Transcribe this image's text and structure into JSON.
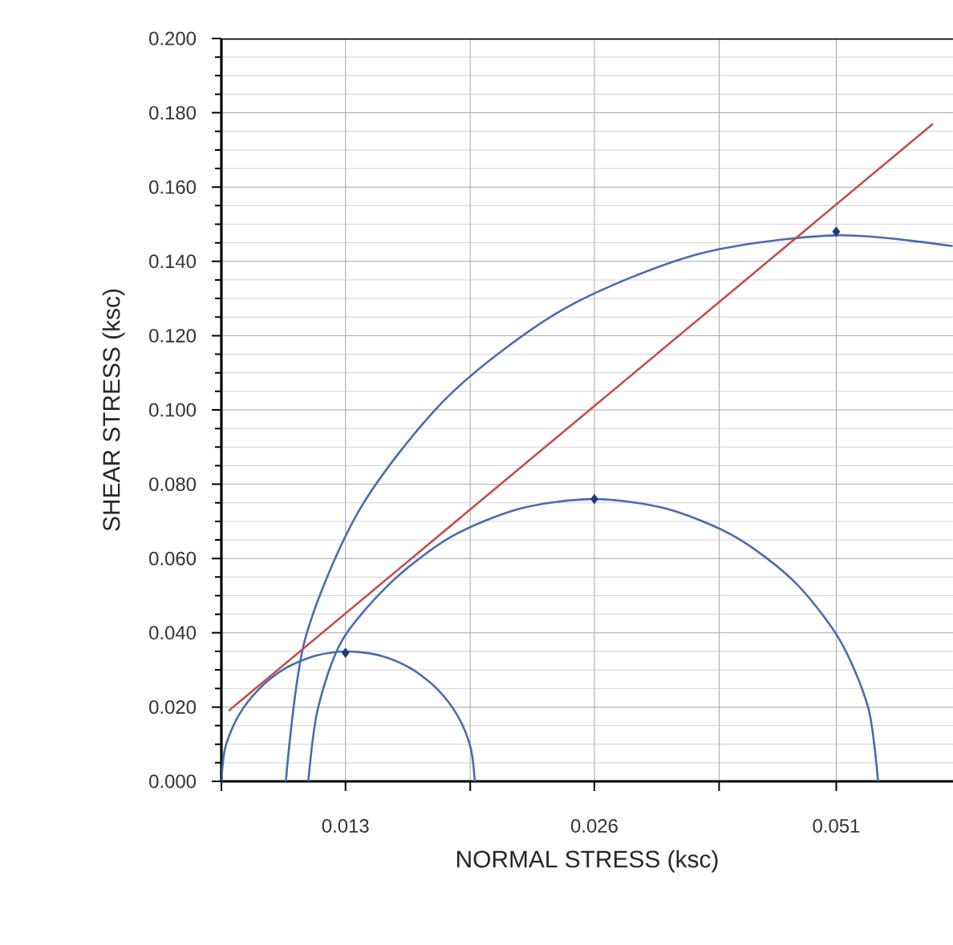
{
  "chart_data": {
    "type": "line",
    "xlabel": "NORMAL STRESS (ksc)",
    "ylabel": "SHEAR STRESS (ksc)",
    "log": "x",
    "xlim": [
      0.0092,
      0.0706
    ],
    "ylim": [
      0,
      0.2
    ],
    "xticks": [
      {
        "value": 0.0092,
        "label": null
      },
      0.013,
      {
        "value": 0.0184,
        "label": null
      },
      0.026,
      {
        "value": 0.0368,
        "label": null
      },
      0.051
    ],
    "yticks": [
      {
        "value": 0,
        "label": "0.000"
      },
      {
        "value": 0.02,
        "label": "0.020"
      },
      {
        "value": 0.04,
        "label": "0.040"
      },
      {
        "value": 0.06,
        "label": "0.060"
      },
      {
        "value": 0.08,
        "label": "0.080"
      },
      {
        "value": 0.1,
        "label": "0.100"
      },
      {
        "value": 0.12,
        "label": "0.120"
      },
      {
        "value": 0.14,
        "label": "0.140"
      },
      {
        "value": 0.16,
        "label": "0.160"
      },
      {
        "value": 0.18,
        "label": "0.180"
      },
      {
        "value": 0.2,
        "label": "0.200"
      }
    ],
    "grid": true,
    "series": [
      {
        "type": "line",
        "color": "#4a6bb0",
        "x": [
          0.0092,
          0.0093,
          0.00964,
          0.0102,
          0.01097,
          0.01195,
          0.01309,
          0.01435,
          0.01562,
          0.01681,
          0.01778,
          0.01842,
          0.01864
        ],
        "values": [
          0,
          0.0091,
          0.0175,
          0.0247,
          0.0303,
          0.0338,
          0.035,
          0.0338,
          0.0303,
          0.0247,
          0.0175,
          0.0091,
          0
        ]
      },
      {
        "type": "line",
        "color": "#4a6bb0",
        "x": [
          0.01172,
          0.01204,
          0.01288,
          0.01478,
          0.01743,
          0.0211,
          0.02591,
          0.03182,
          0.03853,
          0.04541,
          0.05152,
          0.05577,
          0.0573
        ],
        "values": [
          0,
          0.0197,
          0.038,
          0.0537,
          0.0658,
          0.0734,
          0.076,
          0.0734,
          0.0658,
          0.0537,
          0.038,
          0.0197,
          0
        ]
      },
      {
        "type": "line",
        "color": "#4a6bb0",
        "x": [
          0.01101,
          0.01161,
          0.01355,
          0.01735,
          0.02393,
          0.03479,
          0.051,
          0.07054
        ],
        "values": [
          0,
          0.0381,
          0.0735,
          0.1039,
          0.1273,
          0.142,
          0.147,
          0.1441
        ]
      },
      {
        "type": "line",
        "color": "#c0504d",
        "x": [
          0.00939,
          0.06674
        ],
        "values": [
          0.019,
          0.177
        ]
      },
      {
        "type": "scatter",
        "marker": "diamond",
        "color": "#1f3a78",
        "x": [
          0.013,
          0.026,
          0.051
        ],
        "values": [
          0.0346,
          0.076,
          0.148
        ]
      }
    ]
  }
}
